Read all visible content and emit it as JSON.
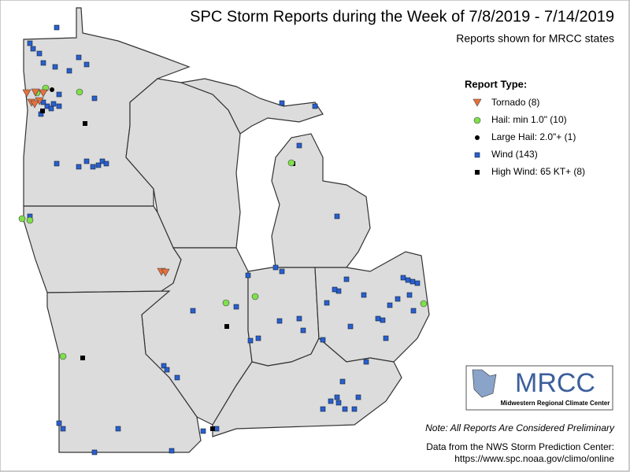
{
  "header": {
    "title": "SPC Storm Reports during the Week of 7/8/2019 - 7/14/2019",
    "subtitle": "Reports shown for MRCC states"
  },
  "legend": {
    "title": "Report Type:",
    "items": [
      {
        "label": "Tornado (8)"
      },
      {
        "label": "Hail: min 1.0\" (10)"
      },
      {
        "label": "Large Hail: 2.0\"+ (1)"
      },
      {
        "label": "Wind (143)"
      },
      {
        "label": "High Wind: 65 KT+ (8)"
      }
    ]
  },
  "logo": {
    "text": "MRCC",
    "caption": "Midwestern Regional Climate Center"
  },
  "footer": {
    "note": "Note: All Reports Are Considered Preliminary",
    "source": "Data from the NWS Storm Prediction Center:",
    "url": "https://www.spc.noaa.gov/climo/online"
  }
}
